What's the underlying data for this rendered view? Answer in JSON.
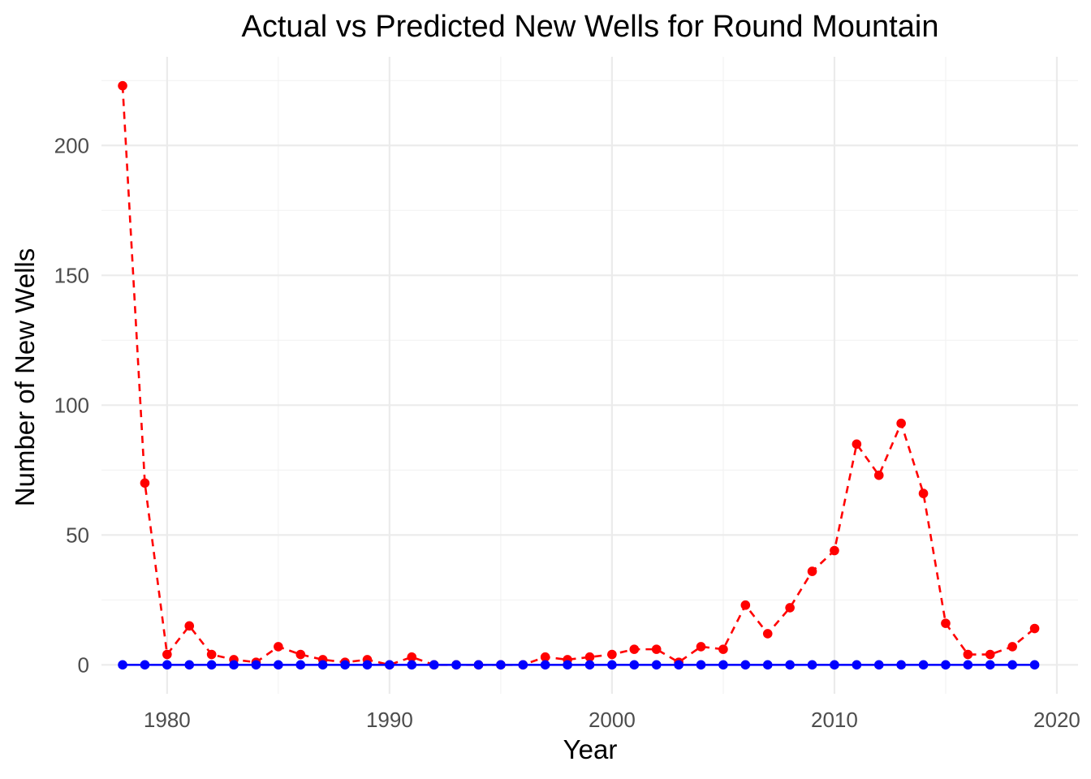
{
  "chart_data": {
    "type": "line",
    "title": "Actual vs Predicted New Wells for Round Mountain",
    "xlabel": "Year",
    "ylabel": "Number of New Wells",
    "xlim": [
      1977.05,
      2020.95
    ],
    "ylim": [
      -11.15,
      234.15
    ],
    "x_ticks": [
      1980,
      1990,
      2000,
      2010,
      2020
    ],
    "y_ticks": [
      0,
      50,
      100,
      150,
      200
    ],
    "grid": true,
    "legend": "none",
    "x": [
      1978,
      1979,
      1980,
      1981,
      1982,
      1983,
      1984,
      1985,
      1986,
      1987,
      1988,
      1989,
      1990,
      1991,
      1992,
      1993,
      1994,
      1995,
      1996,
      1997,
      1998,
      1999,
      2000,
      2001,
      2002,
      2003,
      2004,
      2005,
      2006,
      2007,
      2008,
      2009,
      2010,
      2011,
      2012,
      2013,
      2014,
      2015,
      2016,
      2017,
      2018,
      2019
    ],
    "series": [
      {
        "color": "#ff0000",
        "line_style": "dashed",
        "values": [
          223,
          70,
          4,
          15,
          4,
          2,
          1,
          7,
          4,
          2,
          1,
          2,
          0,
          3,
          0,
          0,
          0,
          0,
          0,
          3,
          2,
          3,
          4,
          6,
          6,
          1,
          7,
          6,
          23,
          12,
          22,
          36,
          44,
          85,
          73,
          93,
          66,
          16,
          4,
          4,
          7,
          14
        ]
      },
      {
        "color": "#0000ff",
        "line_style": "solid",
        "values": [
          0,
          0,
          0,
          0,
          0,
          0,
          0,
          0,
          0,
          0,
          0,
          0,
          0,
          0,
          0,
          0,
          0,
          0,
          0,
          0,
          0,
          0,
          0,
          0,
          0,
          0,
          0,
          0,
          0,
          0,
          0,
          0,
          0,
          0,
          0,
          0,
          0,
          0,
          0,
          0,
          0,
          0
        ]
      }
    ]
  }
}
